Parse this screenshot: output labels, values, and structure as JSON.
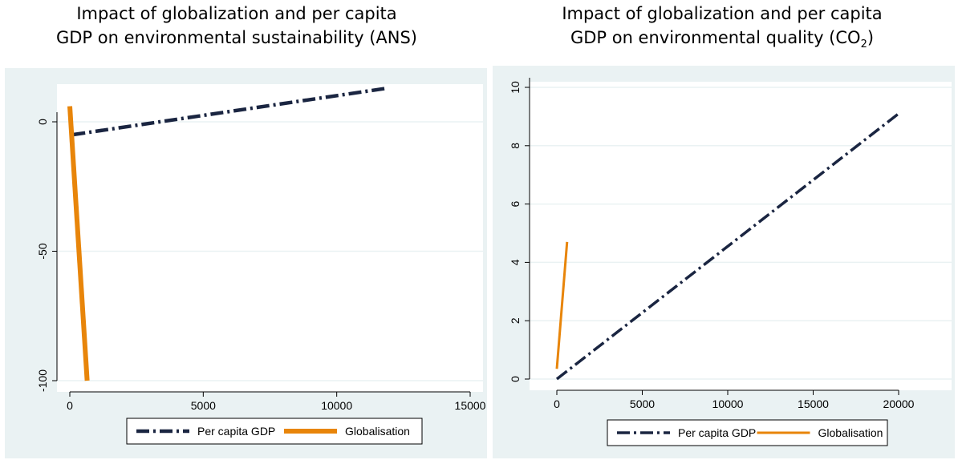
{
  "colors": {
    "panel_bg": "#eaf2f3",
    "plot_bg": "#ffffff",
    "grid": "#eaf2f3",
    "axis": "#000000",
    "per_capita_gdp": "#1a2541",
    "globalisation": "#e8850a"
  },
  "chart_data": [
    {
      "type": "line",
      "title_line1": "Impact of globalization and per capita",
      "title_line2": "GDP on environmental sustainability (ANS)",
      "xlabel": "",
      "ylabel": "",
      "xlim": [
        0,
        15000
      ],
      "ylim": [
        -100,
        0
      ],
      "x_ticks": [
        0,
        5000,
        10000,
        15000
      ],
      "y_ticks": [
        -100,
        -50,
        0
      ],
      "grid": true,
      "legend_position": "bottom",
      "series": [
        {
          "name": "Per capita GDP",
          "style": "dash-dot",
          "x": [
            100,
            11900
          ],
          "y": [
            -5,
            13
          ]
        },
        {
          "name": "Globalisation",
          "style": "solid-thick",
          "x": [
            0,
            650
          ],
          "y": [
            6,
            -100
          ]
        }
      ]
    },
    {
      "type": "line",
      "title_line1": "Impact of globalization and per capita",
      "title_line2": "GDP on environmental quality (CO",
      "title_sub": "2",
      "title_end": ")",
      "xlabel": "",
      "ylabel": "",
      "xlim": [
        0,
        20000
      ],
      "ylim": [
        0,
        10
      ],
      "x_ticks": [
        0,
        5000,
        10000,
        15000,
        20000
      ],
      "y_ticks": [
        0,
        2,
        4,
        6,
        8,
        10
      ],
      "grid": true,
      "legend_position": "bottom",
      "series": [
        {
          "name": "Per capita GDP",
          "style": "dash-dot",
          "x": [
            0,
            20000
          ],
          "y": [
            0,
            9.1
          ]
        },
        {
          "name": "Globalisation",
          "style": "solid",
          "x": [
            0,
            600
          ],
          "y": [
            0.35,
            4.7
          ]
        }
      ]
    }
  ]
}
